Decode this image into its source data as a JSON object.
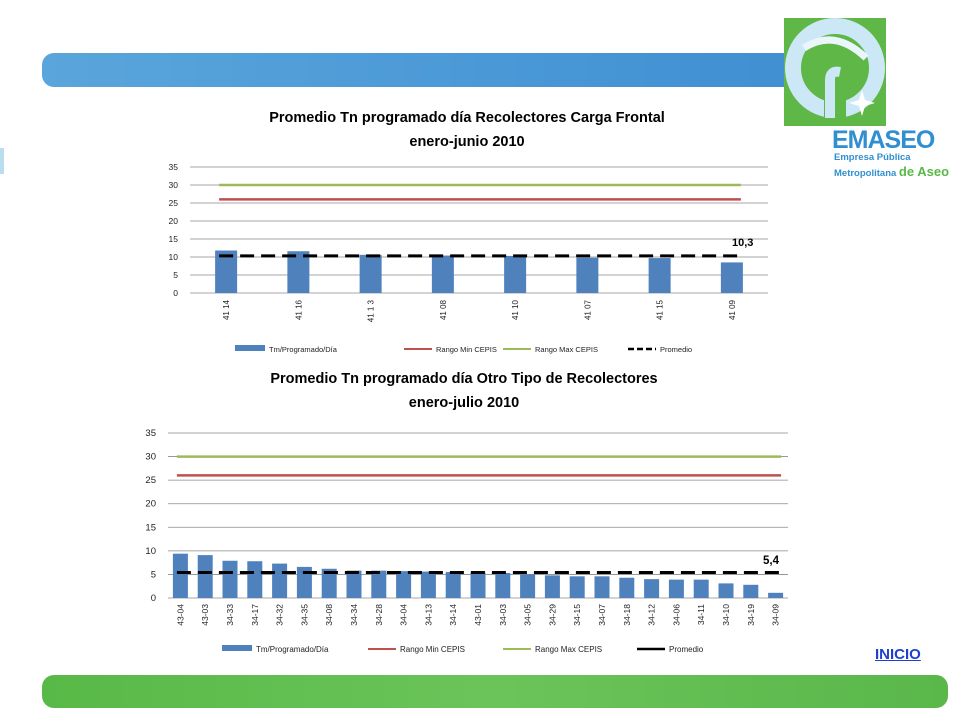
{
  "header": {
    "logo_name": "EMASEO",
    "logo_sub1": "Empresa Pública",
    "logo_sub2_a": "Metropolitana",
    "logo_sub2_b": "de Aseo"
  },
  "nav": {
    "inicio_label": "INICIO"
  },
  "colors": {
    "bar": "#4f81bd",
    "min": "#c0504d",
    "max": "#9bbb59",
    "avg": "#000000"
  },
  "chart_data": [
    {
      "type": "bar",
      "title": "Promedio Tn programado día Recolectores Carga Frontal",
      "subtitle": "enero-junio  2010",
      "categories": [
        "41 14",
        "41 16",
        "41 1 3",
        "41 08",
        "41 10",
        "41 07",
        "41 15",
        "41 09"
      ],
      "series": [
        {
          "name": "Tm/Programado/Día",
          "values": [
            11.8,
            11.6,
            10.6,
            10.4,
            10.3,
            9.8,
            9.7,
            8.5
          ]
        },
        {
          "name": "Rango Min CEPIS",
          "values": [
            26,
            26,
            26,
            26,
            26,
            26,
            26,
            26
          ]
        },
        {
          "name": "Rango Max CEPIS",
          "values": [
            30,
            30,
            30,
            30,
            30,
            30,
            30,
            30
          ]
        },
        {
          "name": "Promedio",
          "values": [
            10.3,
            10.3,
            10.3,
            10.3,
            10.3,
            10.3,
            10.3,
            10.3
          ]
        }
      ],
      "annotation": "10,3",
      "yticks": [
        "0",
        "5",
        "10",
        "15",
        "20",
        "25",
        "30",
        "35"
      ],
      "ylim": [
        0,
        35
      ],
      "grid": true,
      "legend": "bottom"
    },
    {
      "type": "bar",
      "title": "Promedio Tn programado día Otro Tipo de Recolectores",
      "subtitle": "enero-julio 2010",
      "categories": [
        "43-04",
        "43-03",
        "34-33",
        "34-17",
        "34-32",
        "34-35",
        "34-08",
        "34-34",
        "34-28",
        "34-04",
        "34-13",
        "34-14",
        "43-01",
        "34-03",
        "34-05",
        "34-29",
        "34-15",
        "34-07",
        "34-18",
        "34-12",
        "34-06",
        "34-11",
        "34-10",
        "34-19",
        "34-09"
      ],
      "series": [
        {
          "name": "Tm/Programado/Día",
          "values": [
            9.4,
            9.1,
            7.9,
            7.8,
            7.3,
            6.6,
            6.2,
            5.8,
            5.8,
            5.7,
            5.6,
            5.5,
            5.4,
            5.3,
            5.0,
            4.8,
            4.6,
            4.6,
            4.3,
            4.0,
            3.9,
            3.9,
            3.1,
            2.8,
            1.1
          ]
        },
        {
          "name": "Rango Min CEPIS",
          "values": [
            26,
            26,
            26,
            26,
            26,
            26,
            26,
            26,
            26,
            26,
            26,
            26,
            26,
            26,
            26,
            26,
            26,
            26,
            26,
            26,
            26,
            26,
            26,
            26,
            26
          ]
        },
        {
          "name": "Rango Max CEPIS",
          "values": [
            30,
            30,
            30,
            30,
            30,
            30,
            30,
            30,
            30,
            30,
            30,
            30,
            30,
            30,
            30,
            30,
            30,
            30,
            30,
            30,
            30,
            30,
            30,
            30,
            30
          ]
        },
        {
          "name": "Promedio",
          "values": [
            5.4,
            5.4,
            5.4,
            5.4,
            5.4,
            5.4,
            5.4,
            5.4,
            5.4,
            5.4,
            5.4,
            5.4,
            5.4,
            5.4,
            5.4,
            5.4,
            5.4,
            5.4,
            5.4,
            5.4,
            5.4,
            5.4,
            5.4,
            5.4,
            5.4
          ]
        }
      ],
      "annotation": "5,4",
      "yticks": [
        "0",
        "5",
        "10",
        "15",
        "20",
        "25",
        "30",
        "35"
      ],
      "ylim": [
        0,
        35
      ],
      "grid": true,
      "legend": "bottom"
    }
  ]
}
